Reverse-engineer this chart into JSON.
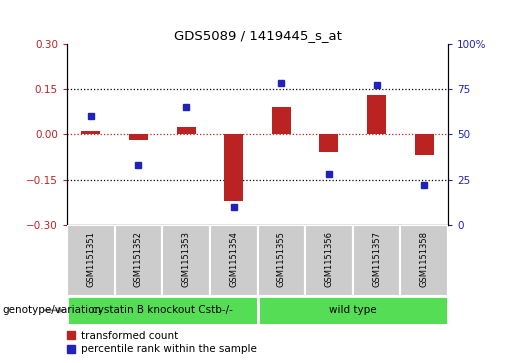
{
  "title": "GDS5089 / 1419445_s_at",
  "samples": [
    "GSM1151351",
    "GSM1151352",
    "GSM1151353",
    "GSM1151354",
    "GSM1151355",
    "GSM1151356",
    "GSM1151357",
    "GSM1151358"
  ],
  "red_values": [
    0.01,
    -0.02,
    0.025,
    -0.22,
    0.09,
    -0.06,
    0.13,
    -0.07
  ],
  "blue_values": [
    60,
    33,
    65,
    10,
    78,
    28,
    77,
    22
  ],
  "ylim_left": [
    -0.3,
    0.3
  ],
  "ylim_right": [
    0,
    100
  ],
  "yticks_left": [
    -0.3,
    -0.15,
    0,
    0.15,
    0.3
  ],
  "yticks_right": [
    0,
    25,
    50,
    75,
    100
  ],
  "group1_label": "cystatin B knockout Cstb-/-",
  "group2_label": "wild type",
  "group1_count": 4,
  "group2_count": 4,
  "genotype_label": "genotype/variation",
  "legend_red": "transformed count",
  "legend_blue": "percentile rank within the sample",
  "red_color": "#bb2222",
  "blue_color": "#2222bb",
  "green_fill": "#55dd55",
  "gray_fill": "#cccccc",
  "bar_width": 0.4,
  "blue_marker_size": 5
}
